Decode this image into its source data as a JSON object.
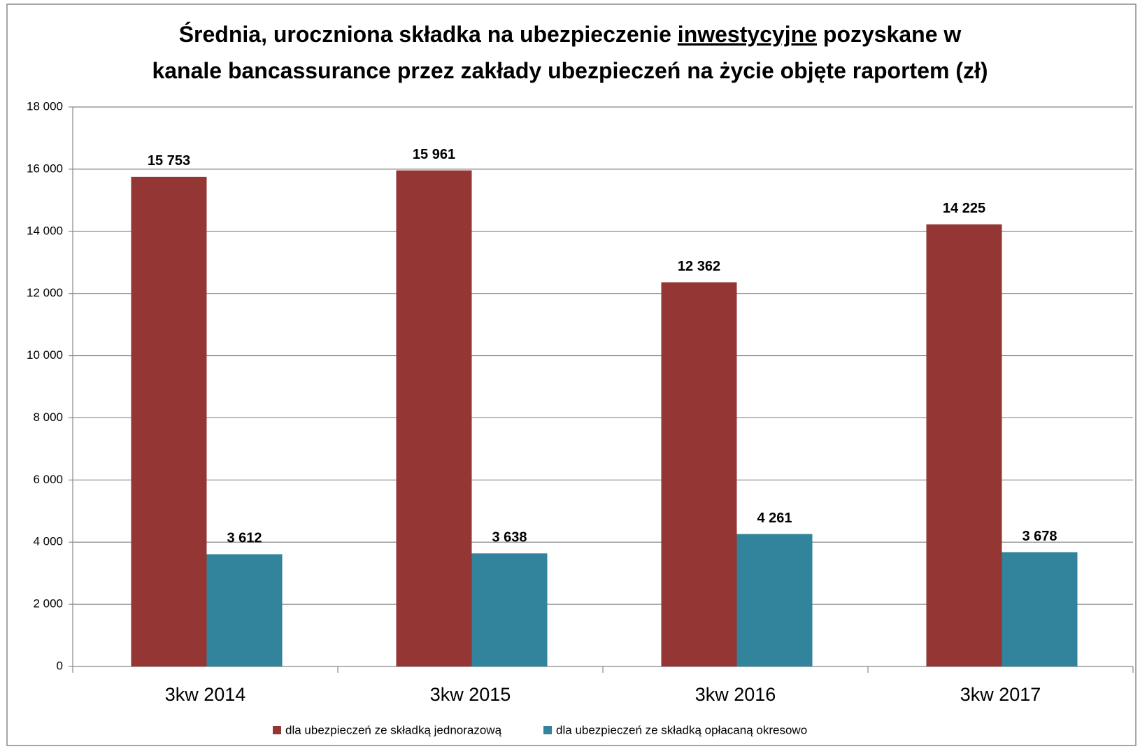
{
  "chart_data": {
    "type": "bar",
    "title": [
      [
        "Średnia, uroczniona składka na ubezpieczenie",
        "inwestycyjne",
        "pozyskane w"
      ],
      [
        "kanale bancassurance przez zakłady ubezpieczeń na życie objęte raportem (zł)"
      ]
    ],
    "categories": [
      "3kw 2014",
      "3kw 2015",
      "3kw 2016",
      "3kw 2017"
    ],
    "series": [
      {
        "name": "dla ubezpieczeń ze składką jednorazową",
        "color": "#943634",
        "values": [
          15753,
          15961,
          12362,
          14225
        ],
        "value_labels": [
          "15 753",
          "15 961",
          "12 362",
          "14 225"
        ]
      },
      {
        "name": "dla ubezpieczeń ze składką opłacaną okresowo",
        "color": "#31849b",
        "values": [
          3612,
          3638,
          4261,
          3678
        ],
        "value_labels": [
          "3 612",
          "3 638",
          "4 261",
          "3 678"
        ]
      }
    ],
    "ylim": [
      0,
      18000
    ],
    "yticks": [
      0,
      {
        "value": 2000,
        "label": "2 000"
      },
      {
        "value": 4000,
        "label": "4 000"
      },
      {
        "value": 6000,
        "label": "6 000"
      },
      {
        "value": 8000,
        "label": "8 000"
      },
      {
        "value": 10000,
        "label": "10 000"
      },
      {
        "value": 12000,
        "label": "12 000"
      },
      {
        "value": 14000,
        "label": "14 000"
      },
      {
        "value": 16000,
        "label": "16 000"
      },
      {
        "value": 18000,
        "label": "18 000"
      }
    ],
    "grid": true,
    "legend": "bottom"
  }
}
